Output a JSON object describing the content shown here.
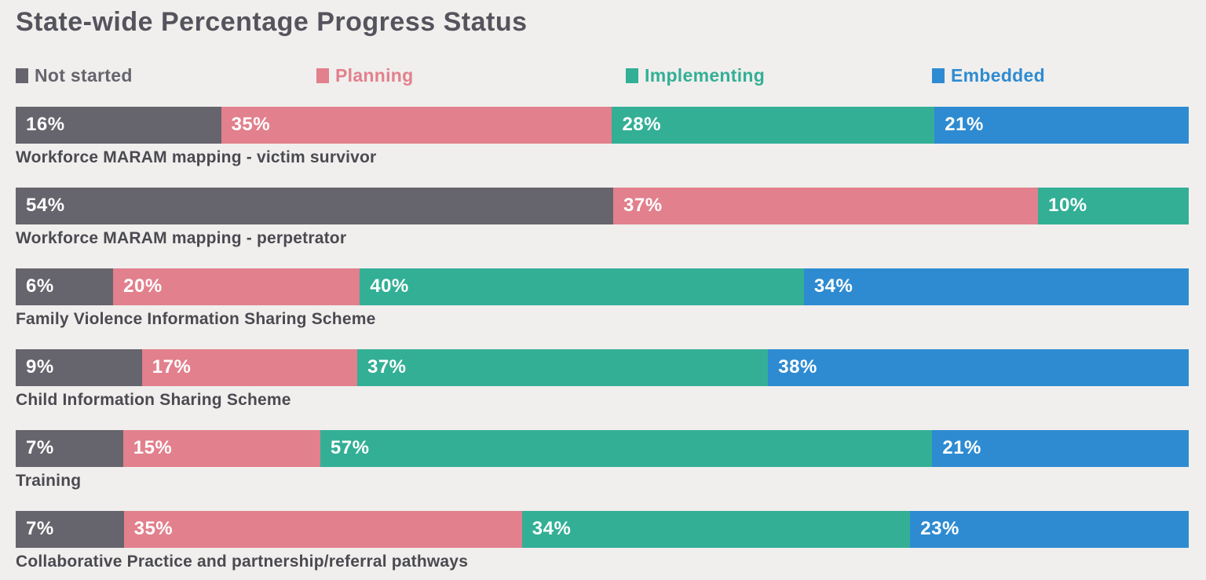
{
  "title": "State-wide Percentage Progress Status",
  "colors": {
    "background": "#f0efed",
    "title_text": "#55535c",
    "category_label_text": "#4b4a51",
    "segment_value_text": "#ffffff",
    "not_started": "#66646c",
    "planning": "#e2808d",
    "implementing": "#33af96",
    "embedded": "#2e8bd1"
  },
  "legend": [
    {
      "label": "Not started",
      "color": "#66646c"
    },
    {
      "label": "Planning",
      "color": "#e2808d"
    },
    {
      "label": "Implementing",
      "color": "#33af96"
    },
    {
      "label": "Embedded",
      "color": "#2e8bd1"
    }
  ],
  "chart_data": {
    "type": "bar",
    "orientation": "horizontal",
    "stacked": true,
    "title": "State-wide Percentage Progress Status",
    "value_suffix": "%",
    "xlim": [
      0,
      100
    ],
    "grid": false,
    "legend_position": "top",
    "categories": [
      "Workforce MARAM mapping - victim survivor",
      "Workforce MARAM mapping - perpetrator",
      "Family Violence Information Sharing Scheme",
      "Child Information Sharing Scheme",
      "Training",
      "Collaborative Practice and partnership/referral pathways"
    ],
    "series": [
      {
        "name": "Not started",
        "color": "#66646c",
        "values": [
          16,
          54,
          6,
          9,
          7,
          7
        ]
      },
      {
        "name": "Planning",
        "color": "#e2808d",
        "values": [
          35,
          37,
          20,
          17,
          15,
          35
        ]
      },
      {
        "name": "Implementing",
        "color": "#33af96",
        "values": [
          28,
          10,
          40,
          37,
          57,
          34
        ]
      },
      {
        "name": "Embedded",
        "color": "#2e8bd1",
        "values": [
          21,
          0,
          34,
          38,
          21,
          23
        ]
      }
    ]
  }
}
